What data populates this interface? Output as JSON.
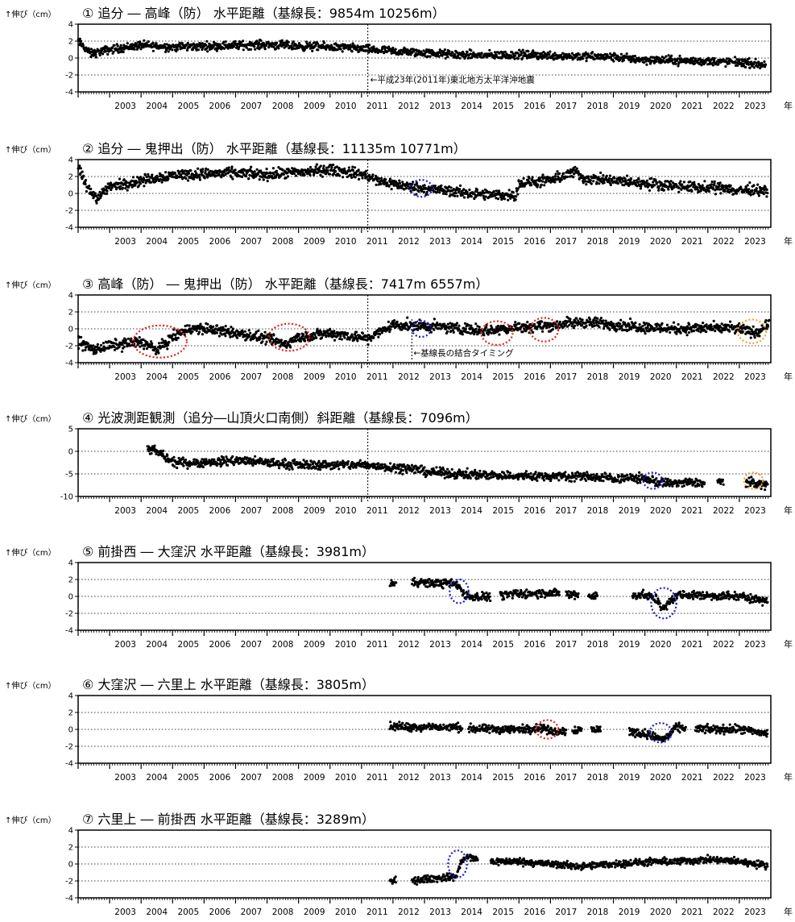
{
  "year_unit": "年",
  "ylabel": "↑伸び（cm）",
  "x_ticks": [
    "2003",
    "2004",
    "2005",
    "2006",
    "2007",
    "2008",
    "2009",
    "2010",
    "2011",
    "2012",
    "2013",
    "2014",
    "2015",
    "2016",
    "2017",
    "2018",
    "2019",
    "2020",
    "2021",
    "2022",
    "2023"
  ],
  "colors": {
    "data": "#000000",
    "blue": "#1a1acc",
    "red": "#e02020",
    "orange": "#f0a030"
  },
  "chart_data": [
    {
      "type": "scatter",
      "title": "① 追分 ― 高峰（防） 水平距離（基線長：9854m 10256m）",
      "ylabel": "↑伸び（cm）",
      "xlabel": "年",
      "xlim": [
        2002.0,
        2024.0
      ],
      "ylim": [
        -4,
        4
      ],
      "yticks": [
        -4,
        -2,
        0,
        2,
        4
      ],
      "grid": "dotted at ±2",
      "annotations": [
        "←平成23年(2011年)東北地方太平洋沖地震"
      ],
      "event_line_x": 2011.2,
      "trend": {
        "x": [
          2002.0,
          2002.4,
          2003.0,
          2004.0,
          2005.0,
          2006.0,
          2007.0,
          2008.0,
          2009.0,
          2010.0,
          2011.0,
          2011.2,
          2012.0,
          2013.0,
          2014.0,
          2015.0,
          2016.0,
          2017.0,
          2018.0,
          2019.0,
          2020.0,
          2021.0,
          2022.0,
          2023.0,
          2023.8
        ],
        "y": [
          2.0,
          0.5,
          1.0,
          1.5,
          1.3,
          1.4,
          1.5,
          1.6,
          1.4,
          1.3,
          1.1,
          1.0,
          0.8,
          0.6,
          0.4,
          0.3,
          0.4,
          0.3,
          0.2,
          0.1,
          -0.2,
          -0.3,
          -0.4,
          -0.5,
          -0.8
        ]
      },
      "spread": 0.35,
      "ranges": [
        [
          2002.0,
          2023.85
        ]
      ],
      "ellipses": []
    },
    {
      "type": "scatter",
      "title": "② 追分 ― 鬼押出（防） 水平距離（基線長：11135m 10771m）",
      "ylabel": "↑伸び（cm）",
      "xlabel": "年",
      "xlim": [
        2002.0,
        2024.0
      ],
      "ylim": [
        -4,
        4
      ],
      "yticks": [
        -4,
        -2,
        0,
        2,
        4
      ],
      "grid": "dotted at ±2",
      "event_line_x": 2011.2,
      "trend": {
        "x": [
          2002.0,
          2002.3,
          2002.6,
          2003.0,
          2004.0,
          2005.0,
          2006.0,
          2007.0,
          2008.0,
          2009.0,
          2010.0,
          2011.0,
          2011.5,
          2012.5,
          2013.0,
          2014.0,
          2015.0,
          2015.9,
          2016.0,
          2017.0,
          2017.8,
          2018.0,
          2019.0,
          2020.0,
          2021.0,
          2022.0,
          2022.6,
          2022.8,
          2023.5,
          2023.9
        ],
        "y": [
          3.0,
          0.5,
          -0.5,
          0.8,
          1.5,
          2.2,
          2.3,
          2.4,
          2.2,
          2.5,
          2.8,
          2.3,
          1.5,
          0.8,
          0.6,
          0.2,
          -0.2,
          -0.2,
          1.2,
          1.5,
          2.6,
          1.8,
          1.5,
          1.2,
          0.9,
          0.6,
          0.8,
          0.3,
          0.5,
          0.2
        ]
      },
      "spread": 0.45,
      "ranges": [
        [
          2002.0,
          2023.9
        ]
      ],
      "ellipses": [
        {
          "color": "blue",
          "cx": 2012.9,
          "cy": 0.6,
          "rx": 0.35,
          "ry": 1.0
        }
      ]
    },
    {
      "type": "scatter",
      "title": "③ 高峰（防） ― 鬼押出（防） 水平距離（基線長：7417m 6557m）",
      "ylabel": "↑伸び（cm）",
      "xlabel": "年",
      "xlim": [
        2002.0,
        2024.0
      ],
      "ylim": [
        -4,
        4
      ],
      "yticks": [
        -4,
        -2,
        0,
        2,
        4
      ],
      "grid": "dotted at ±2",
      "annotations": [
        "←基線長の結合タイミング"
      ],
      "event_line_x": 2011.2,
      "marker_line_x": 2012.6,
      "trend": {
        "x": [
          2002.0,
          2002.5,
          2003.0,
          2004.0,
          2004.5,
          2005.0,
          2005.5,
          2006.0,
          2007.0,
          2008.0,
          2008.6,
          2009.0,
          2010.0,
          2011.0,
          2011.2,
          2012.0,
          2013.0,
          2014.0,
          2015.0,
          2016.0,
          2017.0,
          2018.0,
          2019.0,
          2020.0,
          2021.0,
          2022.0,
          2023.0,
          2023.5,
          2023.9
        ],
        "y": [
          -1.5,
          -2.5,
          -2.0,
          -1.5,
          -2.5,
          -1.0,
          0.0,
          0.0,
          -0.5,
          -1.2,
          -1.8,
          -1.0,
          -0.5,
          -1.0,
          -1.2,
          0.5,
          0.3,
          0.1,
          -0.2,
          0.2,
          0.4,
          0.8,
          0.5,
          0.2,
          0.0,
          0.1,
          0.0,
          -0.5,
          0.5
        ]
      },
      "spread": 0.45,
      "ranges": [
        [
          2002.0,
          2023.95
        ]
      ],
      "ellipses": [
        {
          "color": "red",
          "cx": 2004.6,
          "cy": -1.5,
          "rx": 0.85,
          "ry": 1.9
        },
        {
          "color": "red",
          "cx": 2008.7,
          "cy": -1.0,
          "rx": 0.65,
          "ry": 1.6
        },
        {
          "color": "blue",
          "cx": 2012.9,
          "cy": 0.0,
          "rx": 0.3,
          "ry": 0.95
        },
        {
          "color": "red",
          "cx": 2015.3,
          "cy": -0.5,
          "rx": 0.5,
          "ry": 1.4
        },
        {
          "color": "red",
          "cx": 2016.8,
          "cy": -0.1,
          "rx": 0.45,
          "ry": 1.4
        },
        {
          "color": "orange",
          "cx": 2023.4,
          "cy": -0.3,
          "rx": 0.45,
          "ry": 1.4
        }
      ]
    },
    {
      "type": "scatter",
      "title": "④ 光波測距観測（追分―山頂火口南側）斜距離（基線長：7096m）",
      "ylabel": "↑伸び（cm）",
      "xlabel": "年",
      "xlim": [
        2002.0,
        2024.0
      ],
      "ylim": [
        -10,
        5
      ],
      "yticks": [
        -10,
        -5,
        0,
        5
      ],
      "grid": "dotted at 0 and -5",
      "event_line_x": 2011.2,
      "trend": {
        "x": [
          2004.2,
          2004.5,
          2005.0,
          2006.0,
          2007.0,
          2008.0,
          2009.0,
          2010.0,
          2011.0,
          2012.0,
          2012.8,
          2013.0,
          2014.0,
          2015.0,
          2016.0,
          2017.0,
          2018.0,
          2019.0,
          2020.0,
          2020.5,
          2021.0,
          2022.0,
          2023.0,
          2023.9
        ],
        "y": [
          0.5,
          0.0,
          -2.5,
          -2.5,
          -2.0,
          -2.5,
          -3.0,
          -3.0,
          -3.0,
          -3.5,
          -4.0,
          -4.5,
          -5.0,
          -5.2,
          -5.5,
          -5.5,
          -5.5,
          -6.0,
          -6.0,
          -7.0,
          -7.0,
          -7.0,
          -6.5,
          -7.5
        ]
      },
      "spread": 0.7,
      "ranges": [
        [
          2004.2,
          2021.9
        ],
        [
          2022.3,
          2022.5
        ],
        [
          2023.2,
          2023.9
        ]
      ],
      "ellipses": [
        {
          "color": "blue",
          "cx": 2020.25,
          "cy": -6.5,
          "rx": 0.3,
          "ry": 1.8
        },
        {
          "color": "orange",
          "cx": 2023.45,
          "cy": -6.5,
          "rx": 0.3,
          "ry": 1.8
        }
      ]
    },
    {
      "type": "scatter",
      "title": "⑤ 前掛西 ― 大窪沢 水平距離（基線長：3981m）",
      "ylabel": "↑伸び（cm）",
      "xlabel": "年",
      "xlim": [
        2002.0,
        2024.0
      ],
      "ylim": [
        -4,
        4
      ],
      "yticks": [
        -4,
        -2,
        0,
        2,
        4
      ],
      "grid": "dotted at ±2",
      "trend": {
        "x": [
          2011.9,
          2012.1,
          2012.6,
          2013.0,
          2014.0,
          2014.1,
          2014.3,
          2015.0,
          2016.0,
          2017.0,
          2018.0,
          2019.0,
          2020.0,
          2020.4,
          2020.6,
          2021.0,
          2022.0,
          2023.0,
          2023.9
        ],
        "y": [
          1.6,
          1.6,
          1.8,
          1.6,
          1.5,
          1.2,
          0.0,
          0.0,
          0.3,
          0.4,
          0.1,
          0.0,
          0.2,
          -0.5,
          -1.5,
          0.2,
          0.1,
          0.0,
          -0.5
        ]
      },
      "spread": 0.35,
      "ranges": [
        [
          2011.9,
          2012.1
        ],
        [
          2012.6,
          2015.1
        ],
        [
          2015.4,
          2017.3
        ],
        [
          2017.5,
          2017.9
        ],
        [
          2018.2,
          2018.5
        ],
        [
          2019.6,
          2023.9
        ]
      ],
      "ellipses": [
        {
          "color": "blue",
          "cx": 2014.1,
          "cy": 0.6,
          "rx": 0.3,
          "ry": 1.4
        },
        {
          "color": "blue",
          "cx": 2020.6,
          "cy": -0.8,
          "rx": 0.4,
          "ry": 1.8
        }
      ]
    },
    {
      "type": "scatter",
      "title": "⑥ 大窪沢 ― 六里上 水平距離（基線長：3805m）",
      "ylabel": "↑伸び（cm）",
      "xlabel": "年",
      "xlim": [
        2002.0,
        2024.0
      ],
      "ylim": [
        -4,
        4
      ],
      "yticks": [
        -4,
        -2,
        0,
        2,
        4
      ],
      "grid": "dotted at ±2",
      "trend": {
        "x": [
          2011.9,
          2013.0,
          2014.0,
          2015.0,
          2016.0,
          2016.8,
          2017.0,
          2018.0,
          2019.0,
          2020.0,
          2020.4,
          2020.6,
          2021.0,
          2022.0,
          2023.0,
          2023.9
        ],
        "y": [
          0.3,
          0.3,
          0.2,
          0.0,
          0.0,
          0.2,
          -0.3,
          0.0,
          0.0,
          -0.5,
          -1.0,
          -1.2,
          0.2,
          0.0,
          0.0,
          -0.5
        ]
      },
      "spread": 0.35,
      "ranges": [
        [
          2011.9,
          2014.2
        ],
        [
          2014.4,
          2017.5
        ],
        [
          2017.7,
          2018.0
        ],
        [
          2018.3,
          2018.6
        ],
        [
          2019.5,
          2021.3
        ],
        [
          2021.6,
          2023.9
        ]
      ],
      "ellipses": [
        {
          "color": "red",
          "cx": 2016.9,
          "cy": 0.0,
          "rx": 0.35,
          "ry": 1.1
        },
        {
          "color": "blue",
          "cx": 2020.5,
          "cy": -0.4,
          "rx": 0.35,
          "ry": 1.15
        }
      ]
    },
    {
      "type": "scatter",
      "title": "⑦ 六里上 ― 前掛西 水平距離（基線長：3289m）",
      "ylabel": "↑伸び（cm）",
      "xlabel": "年",
      "xlim": [
        2002.0,
        2024.0
      ],
      "ylim": [
        -4,
        4
      ],
      "yticks": [
        -4,
        -2,
        0,
        2,
        4
      ],
      "grid": "dotted at ±2",
      "trend": {
        "x": [
          2011.9,
          2012.1,
          2012.6,
          2013.0,
          2014.0,
          2014.2,
          2014.4,
          2015.0,
          2016.0,
          2017.0,
          2018.0,
          2019.0,
          2020.0,
          2021.0,
          2022.0,
          2023.0,
          2023.9
        ],
        "y": [
          -2.0,
          -2.0,
          -2.0,
          -1.8,
          -1.5,
          0.5,
          0.8,
          0.3,
          0.3,
          0.0,
          -0.3,
          0.0,
          0.2,
          0.3,
          0.5,
          0.3,
          -0.2
        ]
      },
      "spread": 0.3,
      "ranges": [
        [
          2011.9,
          2012.1
        ],
        [
          2012.6,
          2014.7
        ],
        [
          2015.1,
          2023.9
        ]
      ],
      "ellipses": [
        {
          "color": "blue",
          "cx": 2014.05,
          "cy": 0.0,
          "rx": 0.3,
          "ry": 1.6
        }
      ]
    }
  ]
}
